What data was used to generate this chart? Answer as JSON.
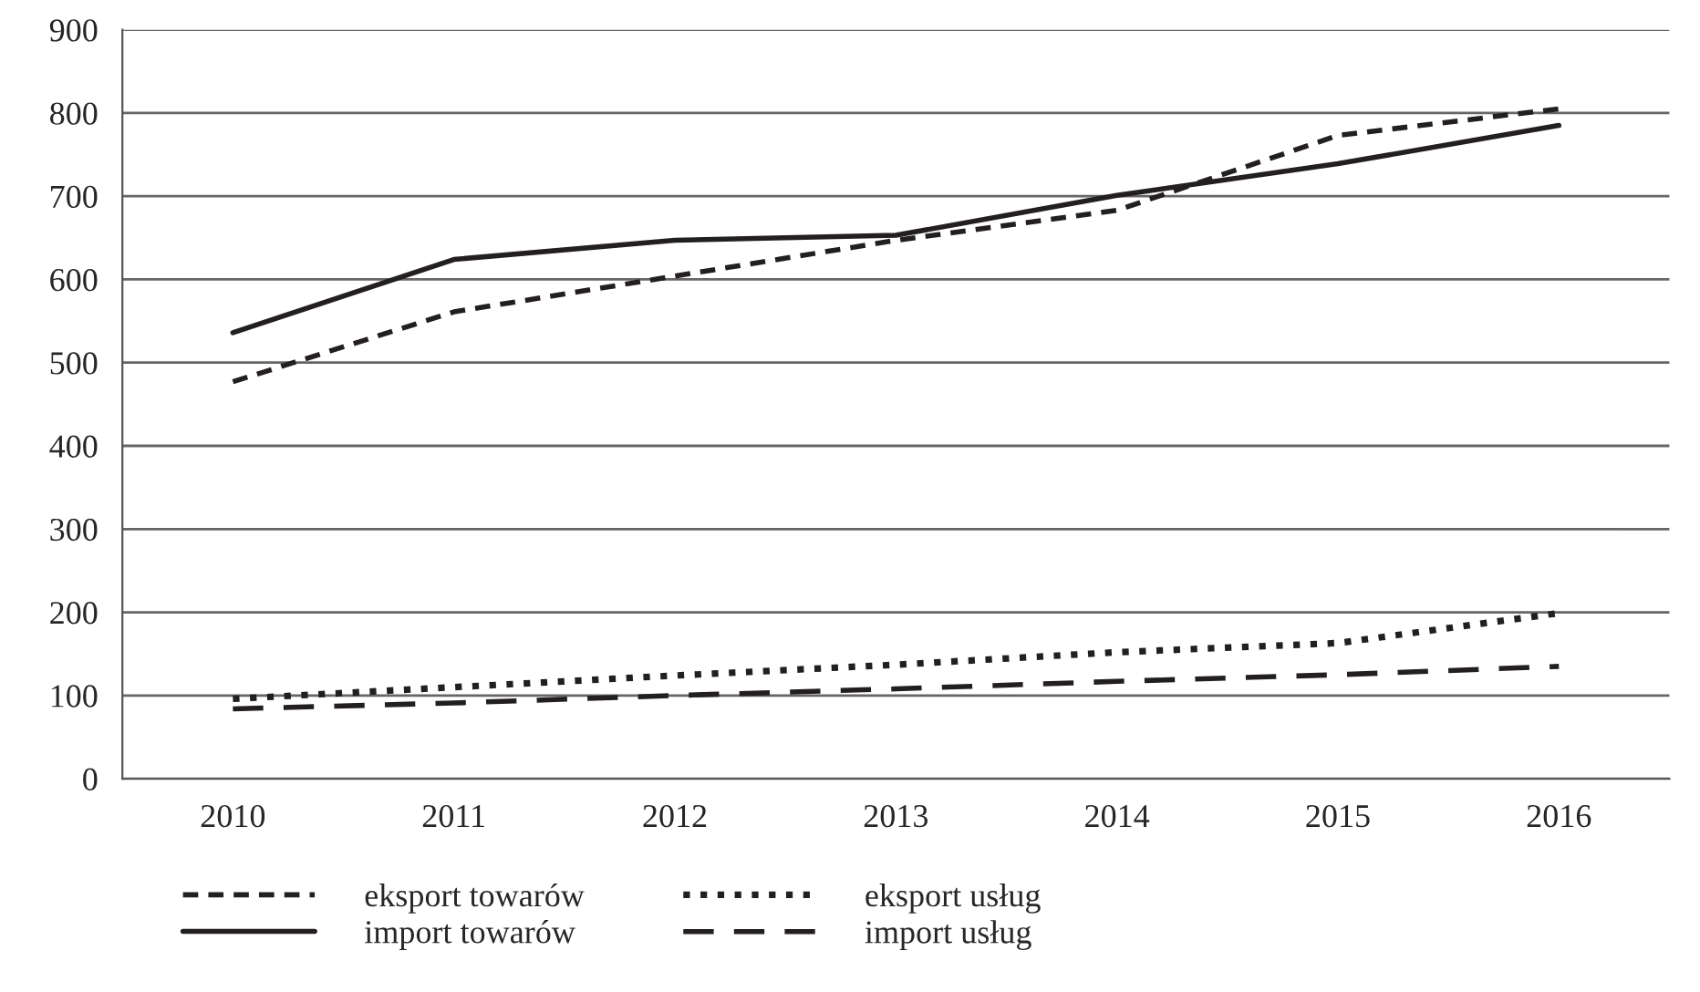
{
  "chart_data": {
    "type": "line",
    "categories": [
      "2010",
      "2011",
      "2012",
      "2013",
      "2014",
      "2015",
      "2016"
    ],
    "series": [
      {
        "name": "eksport towarów",
        "color": "#231f20",
        "line_style": "dashed",
        "values": [
          477,
          561,
          604,
          647,
          683,
          773,
          805
        ]
      },
      {
        "name": "eksport usług",
        "color": "#231f20",
        "line_style": "dotted",
        "values": [
          96,
          110,
          124,
          137,
          152,
          163,
          199
        ]
      },
      {
        "name": "import towarów",
        "color": "#231f20",
        "line_style": "solid",
        "values": [
          536,
          624,
          647,
          653,
          701,
          739,
          785
        ]
      },
      {
        "name": "import usług",
        "color": "#231f20",
        "line_style": "dashed",
        "values": [
          84,
          91,
          100,
          108,
          117,
          125,
          135
        ]
      }
    ],
    "ylim": [
      0,
      900
    ],
    "yticks": [
      0,
      100,
      200,
      300,
      400,
      500,
      600,
      700,
      800,
      900
    ],
    "grid": "y",
    "legend": "bottom",
    "marker": "none"
  }
}
